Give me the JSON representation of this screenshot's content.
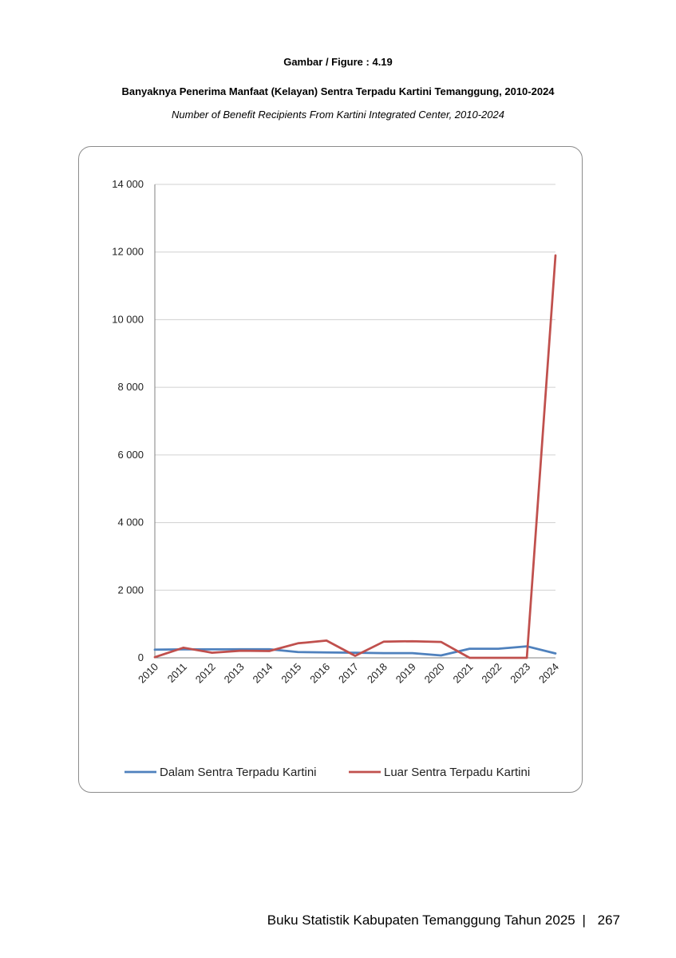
{
  "page": {
    "figure_label": "Gambar / Figure : 4.19",
    "title": "Banyaknya Penerima Manfaat (Kelayan) Sentra Terpadu Kartini Temanggung, 2010-2024",
    "subtitle": "Number of Benefit Recipients From Kartini Integrated Center, 2010-2024"
  },
  "footer": {
    "text": "Buku Statistik Kabupaten Temanggung Tahun 2025",
    "separator": "|",
    "page_number": "267"
  },
  "chart_data": {
    "type": "line",
    "x": [
      "2010",
      "2011",
      "2012",
      "2013",
      "2014",
      "2015",
      "2016",
      "2017",
      "2018",
      "2019",
      "2020",
      "2021",
      "2022",
      "2023",
      "2024"
    ],
    "ylim": [
      0,
      14000
    ],
    "yticks": [
      0,
      2000,
      4000,
      6000,
      8000,
      10000,
      12000,
      14000
    ],
    "ytick_labels": [
      "0",
      "2 000",
      "4 000",
      "6 000",
      "8 000",
      "10 000",
      "12 000",
      "14 000"
    ],
    "grid": true,
    "legend_position": "bottom",
    "series": [
      {
        "name": "Dalam Sentra Terpadu Kartini",
        "color": "#4f81bd",
        "values": [
          240,
          250,
          250,
          255,
          255,
          170,
          160,
          150,
          140,
          140,
          70,
          270,
          270,
          340,
          130
        ]
      },
      {
        "name": "Luar Sentra Terpadu Kartini",
        "color": "#c0504d",
        "values": [
          20,
          300,
          150,
          210,
          200,
          430,
          510,
          60,
          480,
          490,
          470,
          0,
          0,
          0,
          11900
        ]
      }
    ]
  }
}
